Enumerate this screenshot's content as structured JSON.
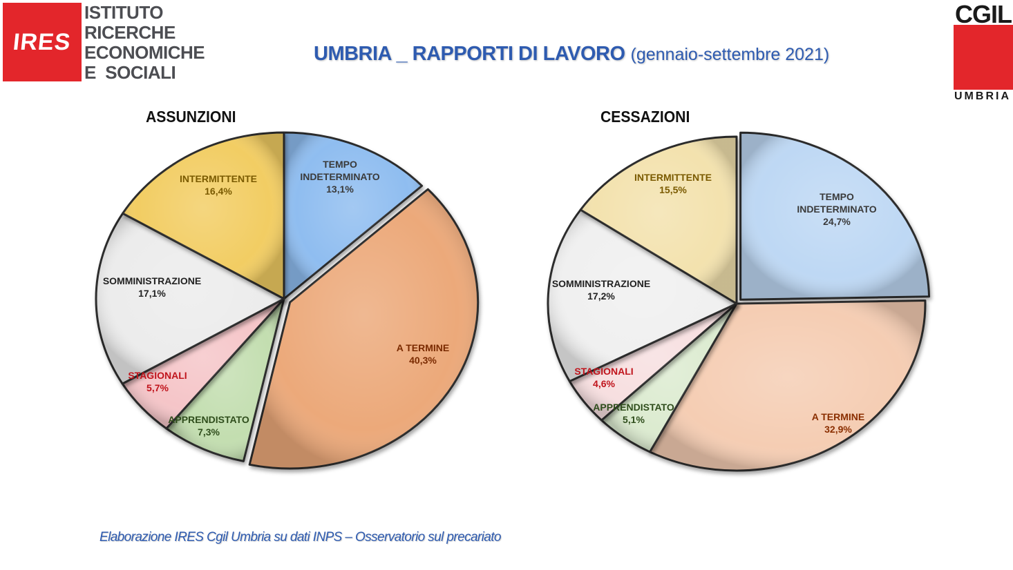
{
  "logo_left": {
    "mark": "IRES",
    "name_lines": [
      "ISTITUTO",
      "RICERCHE",
      "ECONOMICHE",
      "E  SOCIALI"
    ],
    "color": "#e3262b"
  },
  "logo_right": {
    "mark": "CGIL",
    "region": "UMBRIA",
    "color": "#e3262b"
  },
  "title": {
    "main": "UMBRIA _ RAPPORTI DI LAVORO",
    "period": "(gennaio-settembre 2021)",
    "color": "#2e5bb0"
  },
  "chart_data": [
    {
      "type": "pie",
      "title": "ASSUNZIONI",
      "slices": [
        {
          "label": "TEMPO INDETERMINATO",
          "value": 13.1,
          "value_label": "13,1%",
          "color": "#8fbdf0",
          "text_color": "#3a3a3a"
        },
        {
          "label": "A TERMINE",
          "value": 40.3,
          "value_label": "40,3%",
          "color": "#eca97a",
          "text_color": "#7a2a00"
        },
        {
          "label": "APPRENDISTATO",
          "value": 7.3,
          "value_label": "7,3%",
          "color": "#c3deb0",
          "text_color": "#2f4d1c"
        },
        {
          "label": "STAGIONALI",
          "value": 5.7,
          "value_label": "5,7%",
          "color": "#f5c5c8",
          "text_color": "#c0141c"
        },
        {
          "label": "SOMMINISTRAZIONE",
          "value": 17.1,
          "value_label": "17,1%",
          "color": "#ececec",
          "text_color": "#222222"
        },
        {
          "label": "INTERMITTENTE",
          "value": 16.4,
          "value_label": "16,4%",
          "color": "#f2cd63",
          "text_color": "#7a5a00"
        }
      ]
    },
    {
      "type": "pie",
      "title": "CESSAZIONI",
      "slices": [
        {
          "label": "TEMPO INDETERMINATO",
          "value": 24.7,
          "value_label": "24,7%",
          "color": "#bed8f4",
          "text_color": "#3a3a3a"
        },
        {
          "label": "A TERMINE",
          "value": 32.9,
          "value_label": "32,9%",
          "color": "#f5cdb3",
          "text_color": "#8a2e00"
        },
        {
          "label": "APPRENDISTATO",
          "value": 5.1,
          "value_label": "5,1%",
          "color": "#dcebd0",
          "text_color": "#2f4d1c"
        },
        {
          "label": "STAGIONALI",
          "value": 4.6,
          "value_label": "4,6%",
          "color": "#f7dfe0",
          "text_color": "#c0141c"
        },
        {
          "label": "SOMMINISTRAZIONE",
          "value": 17.2,
          "value_label": "17,2%",
          "color": "#f0f0f0",
          "text_color": "#222222"
        },
        {
          "label": "INTERMITTENTE",
          "value": 15.5,
          "value_label": "15,5%",
          "color": "#f3e2ae",
          "text_color": "#7a5a00"
        }
      ]
    }
  ],
  "source_note": "Elaborazione IRES Cgil Umbria su dati INPS – Osservatorio sul precariato"
}
